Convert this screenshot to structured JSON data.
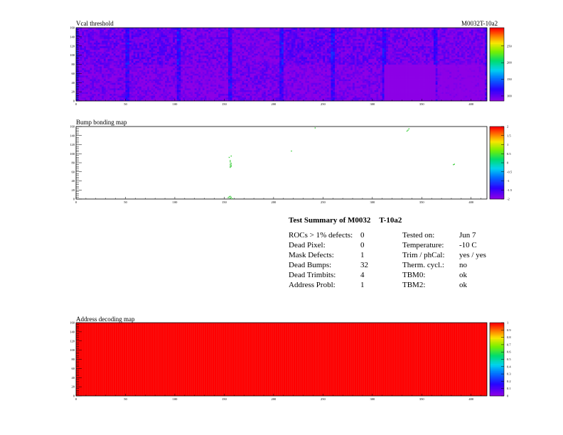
{
  "header": {
    "top_right_label": "M0032T-10a2"
  },
  "chart_data": [
    {
      "type": "heatmap",
      "title": "Vcal threshold",
      "xlim": [
        0,
        416
      ],
      "ylim": [
        0,
        160
      ],
      "x_ticks": [
        "0",
        "50",
        "100",
        "150",
        "200",
        "250",
        "300",
        "350",
        "400"
      ],
      "y_ticks": [
        "0",
        "20",
        "40",
        "60",
        "80",
        "100",
        "120",
        "140",
        "160"
      ],
      "z_range": [
        90,
        260
      ],
      "z_ticks": [
        "100",
        "150",
        "200",
        "250"
      ],
      "roc_means": [
        [
          95,
          93,
          92,
          96,
          92,
          93,
          55,
          85
        ],
        [
          98,
          100,
          96,
          94,
          100,
          98,
          96,
          95
        ]
      ]
    },
    {
      "type": "scatter",
      "title": "Bump bonding map",
      "xlim": [
        0,
        416
      ],
      "ylim": [
        0,
        160
      ],
      "x_ticks": [
        "0",
        "50",
        "100",
        "150",
        "200",
        "250",
        "300",
        "350",
        "400"
      ],
      "y_ticks": [
        "0",
        "20",
        "40",
        "60",
        "80",
        "100",
        "120",
        "140",
        "160"
      ],
      "z_ticks": [
        "-2",
        "-1.5",
        "-1",
        "-0.5",
        "0",
        "0.5",
        "1",
        "1.5",
        "2"
      ],
      "points": [
        {
          "x": 156,
          "y": 85
        },
        {
          "x": 156,
          "y": 82
        },
        {
          "x": 157,
          "y": 79
        },
        {
          "x": 156,
          "y": 77
        },
        {
          "x": 157,
          "y": 75
        },
        {
          "x": 156,
          "y": 73
        },
        {
          "x": 157,
          "y": 72
        },
        {
          "x": 156,
          "y": 70
        },
        {
          "x": 155,
          "y": 92
        },
        {
          "x": 157,
          "y": 95
        },
        {
          "x": 154,
          "y": 3
        },
        {
          "x": 155,
          "y": 5
        },
        {
          "x": 156,
          "y": 2
        },
        {
          "x": 157,
          "y": 4
        },
        {
          "x": 158,
          "y": 1
        },
        {
          "x": 156,
          "y": 6
        },
        {
          "x": 242,
          "y": 157
        },
        {
          "x": 336,
          "y": 152
        },
        {
          "x": 337,
          "y": 155
        },
        {
          "x": 335,
          "y": 150
        },
        {
          "x": 218,
          "y": 106
        },
        {
          "x": 382,
          "y": 76
        },
        {
          "x": 383,
          "y": 77
        }
      ]
    },
    {
      "type": "heatmap",
      "title": "Address decoding map",
      "xlim": [
        0,
        416
      ],
      "ylim": [
        0,
        160
      ],
      "x_ticks": [
        "0",
        "50",
        "100",
        "150",
        "200",
        "250",
        "300",
        "350",
        "400"
      ],
      "y_ticks": [
        "0",
        "20",
        "40",
        "60",
        "80",
        "100",
        "120",
        "140",
        "160"
      ],
      "z_ticks": [
        "0",
        "0.1",
        "0.2",
        "0.3",
        "0.4",
        "0.5",
        "0.6",
        "0.7",
        "0.8",
        "0.9",
        "1"
      ],
      "value": 1
    }
  ],
  "summary": {
    "title_parts": [
      "Test Summary of M0032",
      "T-10a2"
    ],
    "left_rows": [
      {
        "label": "ROCs > 1% defects:",
        "value": "0"
      },
      {
        "label": "Dead Pixel:",
        "value": "0"
      },
      {
        "label": "Mask Defects:",
        "value": "1"
      },
      {
        "label": "Dead Bumps:",
        "value": "32"
      },
      {
        "label": "Dead Trimbits:",
        "value": "4"
      },
      {
        "label": "Address Probl:",
        "value": "1"
      }
    ],
    "right_rows": [
      {
        "label": "Tested on:",
        "value": "Jun 7"
      },
      {
        "label": "Temperature:",
        "value": "-10 C"
      },
      {
        "label": "Trim / phCal:",
        "value": "yes / yes"
      },
      {
        "label": "Therm. cycl.:",
        "value": "no"
      },
      {
        "label": "TBM0:",
        "value": "ok"
      },
      {
        "label": "TBM2:",
        "value": "ok"
      }
    ]
  }
}
